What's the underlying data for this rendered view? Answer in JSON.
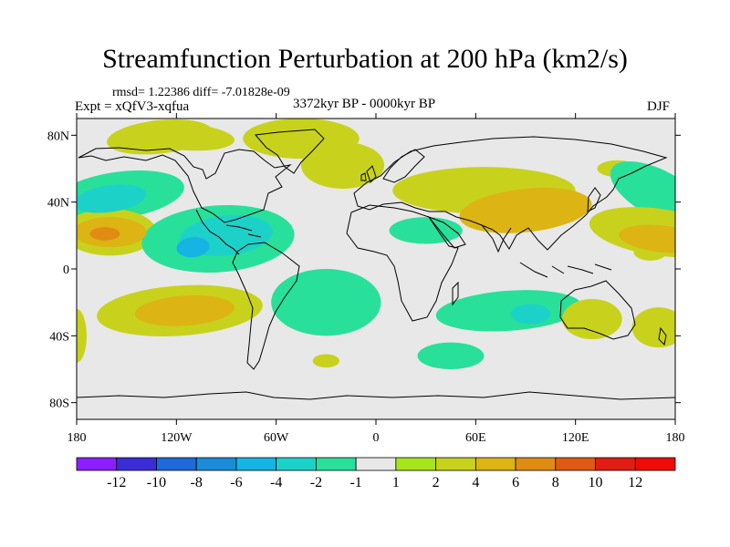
{
  "title": "Streamfunction Perturbation at 200 hPa (km2/s)",
  "stats_line": "rmsd= 1.22386 diff= -7.01828e-09",
  "experiment": "Expt = xQfV3-xqfua",
  "period": "3372kyr BP - 0000kyr BP",
  "season": "DJF",
  "chart_data": {
    "type": "heatmap",
    "projection": "cylindrical equidistant",
    "x_ticks": [
      "180",
      "120W",
      "60W",
      "0",
      "60E",
      "120E",
      "180"
    ],
    "y_ticks": [
      "80N",
      "40N",
      "0",
      "40S",
      "80S"
    ],
    "xlim": [
      -180,
      180
    ],
    "ylim": [
      -90,
      90
    ],
    "colorbar": {
      "labels": [
        "-12",
        "-10",
        "-8",
        "-6",
        "-4",
        "-2",
        "-1",
        "1",
        "2",
        "4",
        "6",
        "8",
        "10",
        "12"
      ],
      "colors": [
        "#8c1eff",
        "#3a2dd6",
        "#1e6ad8",
        "#1c8cd8",
        "#15b4e2",
        "#1cd2c8",
        "#28e09a",
        "#e8e8e8",
        "#a8e41c",
        "#c8d21c",
        "#dcb414",
        "#e08c14",
        "#e05a14",
        "#e01e14",
        "#f00a0a"
      ]
    },
    "anomalies": [
      {
        "lon": -130,
        "lat": 79,
        "value": 2
      },
      {
        "lon": -115,
        "lat": 79,
        "value": 2
      },
      {
        "lon": -45,
        "lat": 78,
        "value": 2
      },
      {
        "lon": -20,
        "lat": 62,
        "value": 2
      },
      {
        "lon": -155,
        "lat": 44,
        "value": -2
      },
      {
        "lon": -160,
        "lat": 42,
        "value": -4
      },
      {
        "lon": -160,
        "lat": 22,
        "value": 2
      },
      {
        "lon": -160,
        "lat": 22,
        "value": 4
      },
      {
        "lon": -163,
        "lat": 21,
        "value": 6
      },
      {
        "lon": -95,
        "lat": 18,
        "value": -2
      },
      {
        "lon": -90,
        "lat": 20,
        "value": -4
      },
      {
        "lon": -110,
        "lat": 13,
        "value": -6
      },
      {
        "lon": -118,
        "lat": -25,
        "value": 2
      },
      {
        "lon": -115,
        "lat": -25,
        "value": 4
      },
      {
        "lon": -180,
        "lat": -40,
        "value": 2
      },
      {
        "lon": -30,
        "lat": -20,
        "value": -2
      },
      {
        "lon": -30,
        "lat": -55,
        "value": 2
      },
      {
        "lon": 65,
        "lat": 47,
        "value": 2
      },
      {
        "lon": 90,
        "lat": 35,
        "value": 4
      },
      {
        "lon": 30,
        "lat": 23,
        "value": -2
      },
      {
        "lon": 145,
        "lat": 60,
        "value": 2
      },
      {
        "lon": 170,
        "lat": 45,
        "value": -2
      },
      {
        "lon": 170,
        "lat": 22,
        "value": 2
      },
      {
        "lon": 172,
        "lat": 18,
        "value": 4
      },
      {
        "lon": 165,
        "lat": 10,
        "value": 2
      },
      {
        "lon": 80,
        "lat": -25,
        "value": -2
      },
      {
        "lon": 93,
        "lat": -27,
        "value": -4
      },
      {
        "lon": 130,
        "lat": -30,
        "value": 2
      },
      {
        "lon": 170,
        "lat": -35,
        "value": 2
      },
      {
        "lon": 45,
        "lat": -52,
        "value": -2
      }
    ]
  }
}
